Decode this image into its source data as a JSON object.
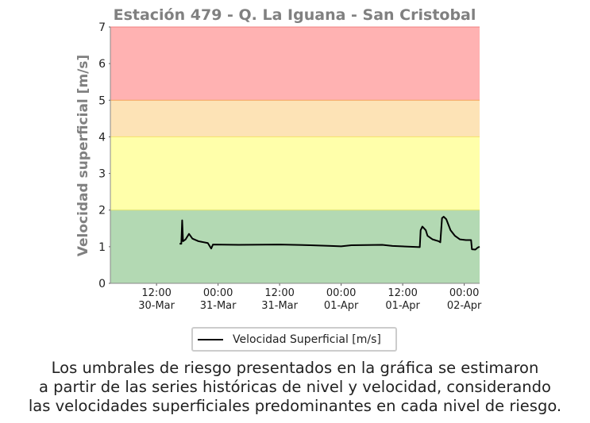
{
  "chart_data": {
    "type": "line",
    "title": "Estación 479 - Q. La Iguana - San Cristobal",
    "ylabel": "Velocidad superficial [m/s]",
    "ylim": [
      0,
      7
    ],
    "yticks": [
      0,
      1,
      2,
      3,
      4,
      5,
      6,
      7
    ],
    "xlim": [
      "30-Mar 03:00",
      "02-Apr 03:00"
    ],
    "xticks": [
      {
        "value": "30-Mar 12:00",
        "label": "12:00\n30-Mar"
      },
      {
        "value": "31-Mar 00:00",
        "label": "00:00\n31-Mar"
      },
      {
        "value": "31-Mar 12:00",
        "label": "12:00\n31-Mar"
      },
      {
        "value": "01-Apr 00:00",
        "label": "00:00\n01-Apr"
      },
      {
        "value": "01-Apr 12:00",
        "label": "12:00\n01-Apr"
      },
      {
        "value": "02-Apr 00:00",
        "label": "00:00\n02-Apr"
      }
    ],
    "bands": [
      {
        "from": 0,
        "to": 2,
        "color": "#b3d9b3",
        "edge": "#d8e070"
      },
      {
        "from": 2,
        "to": 4,
        "color": "#ffffaa",
        "edge": "#f5e06a"
      },
      {
        "from": 4,
        "to": 5,
        "color": "#fde3b6",
        "edge": "#f5a35a"
      },
      {
        "from": 5,
        "to": 7,
        "color": "#ffb2b2",
        "edge": "#f08080"
      }
    ],
    "legend": "lower center",
    "x": [
      "30-Mar 16:30",
      "30-Mar 16:50",
      "30-Mar 17:00",
      "30-Mar 17:10",
      "30-Mar 17:40",
      "30-Mar 18:20",
      "30-Mar 19:00",
      "30-Mar 20:10",
      "30-Mar 22:00",
      "30-Mar 22:40",
      "30-Mar 23:00",
      "31-Mar 04:00",
      "31-Mar 12:00",
      "31-Mar 18:00",
      "31-Mar 22:00",
      "01-Apr 00:00",
      "01-Apr 02:00",
      "01-Apr 08:00",
      "01-Apr 10:00",
      "01-Apr 15:20",
      "01-Apr 15:30",
      "01-Apr 15:50",
      "01-Apr 16:30",
      "01-Apr 16:50",
      "01-Apr 17:50",
      "01-Apr 19:00",
      "01-Apr 19:20",
      "01-Apr 19:40",
      "01-Apr 20:00",
      "01-Apr 20:30",
      "01-Apr 21:20",
      "01-Apr 22:10",
      "01-Apr 23:10",
      "02-Apr 00:20",
      "02-Apr 01:20",
      "02-Apr 01:30",
      "02-Apr 02:10",
      "02-Apr 02:40",
      "02-Apr 03:00"
    ],
    "series": [
      {
        "name": "Velocidad Superficial [m/s]",
        "color": "#000000",
        "values": [
          1.08,
          1.08,
          1.72,
          1.15,
          1.2,
          1.35,
          1.22,
          1.15,
          1.1,
          0.95,
          1.06,
          1.05,
          1.06,
          1.04,
          1.02,
          1.01,
          1.04,
          1.05,
          1.02,
          0.99,
          1.45,
          1.55,
          1.45,
          1.3,
          1.2,
          1.15,
          1.12,
          1.78,
          1.82,
          1.75,
          1.45,
          1.3,
          1.2,
          1.18,
          1.18,
          0.93,
          0.92,
          0.98,
          1.0
        ]
      }
    ]
  },
  "caption": [
    "Los umbrales de riesgo presentados en la gráfica se estimaron",
    "a partir de las series históricas de nivel y velocidad, considerando",
    "las velocidades superficiales predominantes en cada nivel de riesgo."
  ]
}
